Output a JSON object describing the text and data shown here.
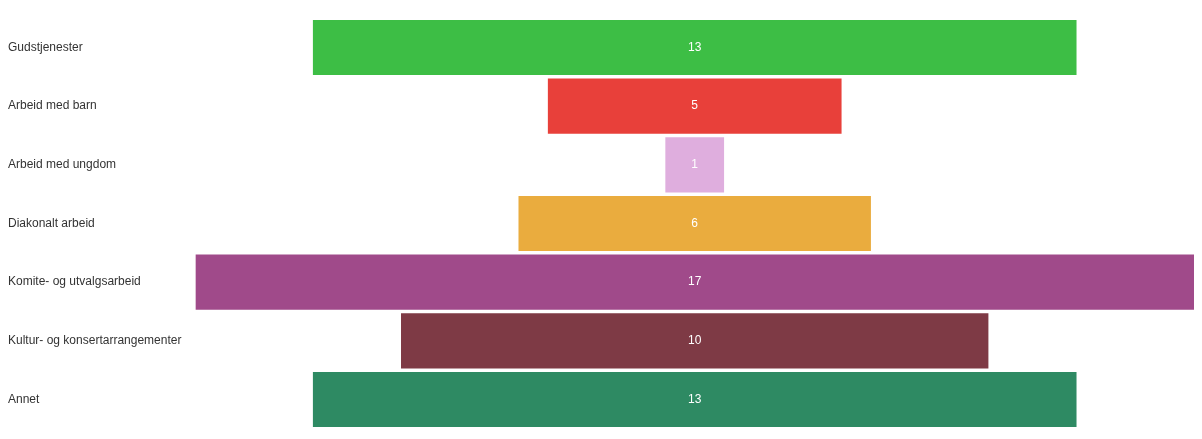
{
  "chart_data": {
    "type": "other",
    "categories": [
      "Gudstjenester",
      "Arbeid med barn",
      "Arbeid med ungdom",
      "Diakonalt arbeid",
      "Komite- og utvalgsarbeid",
      "Kultur- og konsertarrangementer",
      "Annet"
    ],
    "values": [
      13,
      5,
      1,
      6,
      17,
      10,
      13
    ],
    "colors": [
      "#3dbe45",
      "#e8403a",
      "#dfaede",
      "#eaac3e",
      "#a04a8a",
      "#7e3a45",
      "#2e8a63"
    ],
    "data_labels": true,
    "legend": false
  }
}
